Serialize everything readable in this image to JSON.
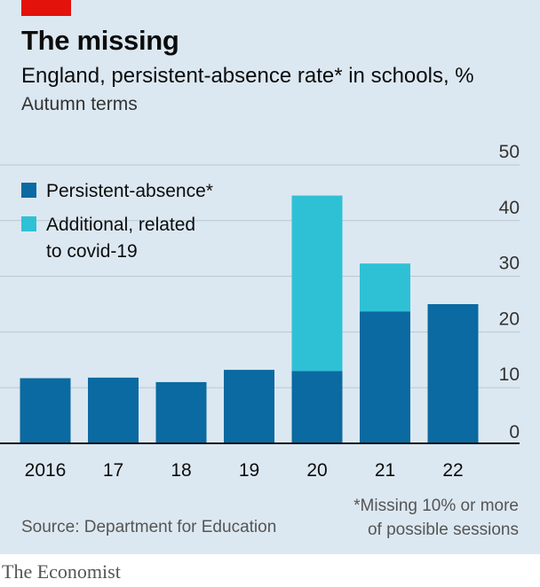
{
  "header": {
    "title": "The missing",
    "subtitle": "England, persistent-absence rate* in schools, %",
    "subtitle2": "Autumn terms"
  },
  "footer": {
    "source": "Source: Department for Education",
    "footnote_line1": "*Missing 10% or more",
    "footnote_line2": "of possible sessions",
    "brand": "The Economist"
  },
  "colors": {
    "background": "#dce8f1",
    "accent_red": "#e3120b",
    "persistent": "#0a6aa1",
    "additional": "#2ec1d6",
    "grid": "#b9c7d1",
    "axis": "#0c0c0c"
  },
  "legend": {
    "items": [
      {
        "label_lines": [
          "Persistent-absence*"
        ],
        "color": "#0a6aa1"
      },
      {
        "label_lines": [
          "Additional, related",
          "to covid-19"
        ],
        "color": "#2ec1d6"
      }
    ]
  },
  "chart_data": {
    "type": "bar",
    "stacked": true,
    "categories": [
      "2016",
      "17",
      "18",
      "19",
      "20",
      "21",
      "22"
    ],
    "series": [
      {
        "name": "Persistent-absence*",
        "color": "#0a6aa1",
        "values": [
          11.7,
          11.8,
          11.0,
          13.2,
          13.0,
          23.7,
          25.0
        ]
      },
      {
        "name": "Additional, related to covid-19",
        "color": "#2ec1d6",
        "values": [
          0,
          0,
          0,
          0,
          31.5,
          8.6,
          0
        ]
      }
    ],
    "ylim": [
      0,
      50
    ],
    "yticks": [
      0,
      10,
      20,
      30,
      40,
      50
    ],
    "y_axis_position": "right",
    "grid": true,
    "legend_position": "top-left"
  }
}
